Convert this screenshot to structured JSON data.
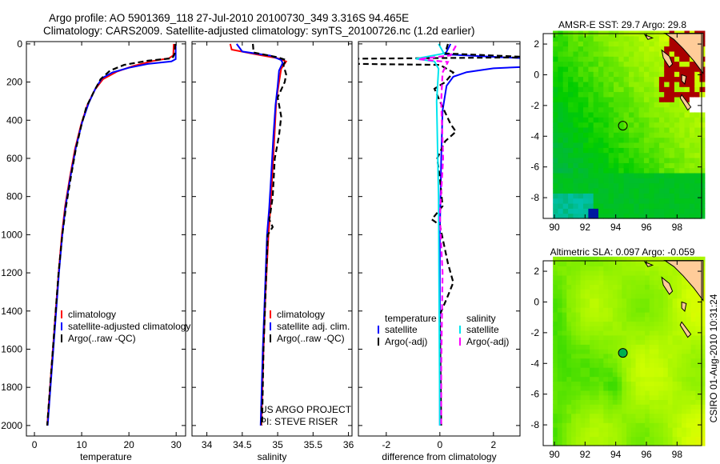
{
  "title": {
    "line1": "Argo profile: AO 5901369_118 27-Jul-2010 20100730_349 3.316S 94.465E",
    "line2": "Climatology: CARS2009. Satellite-adjusted climatology: synTS_20100726.nc (1.2d earlier)"
  },
  "credits": {
    "project": "US ARGO PROJECT",
    "pi": "PI: STEVE RISER",
    "stamp": "CSIRO 01-Aug-2010 10:31:24"
  },
  "colors": {
    "climatology": "#ff0000",
    "satellite": "#0000ff",
    "argo": "#000000",
    "salinity_satellite": "#00e5ee",
    "salinity_argo": "#ff00ff"
  },
  "chart_data": [
    {
      "type": "line",
      "xlabel": "temperature",
      "ylabel": "",
      "xlim": [
        -1.7,
        32
      ],
      "ylim": [
        2055,
        -12
      ],
      "xticks": [
        "0",
        "10",
        "20",
        "30"
      ],
      "xtick_values": [
        0,
        10,
        20,
        30
      ],
      "yticks": [
        "0",
        "200",
        "400",
        "600",
        "800",
        "1000",
        "1200",
        "1400",
        "1600",
        "1800",
        "2000"
      ],
      "ytick_values": [
        0,
        200,
        400,
        600,
        800,
        1000,
        1200,
        1400,
        1600,
        1800,
        2000
      ],
      "legend": [
        "climatology",
        "satellite-adjusted climatology",
        "Argo(..raw -QC)"
      ],
      "legend_position": "lower-right",
      "series": [
        {
          "name": "climatology",
          "color": "#ff0000",
          "dash": false,
          "points": [
            [
              29.5,
              0
            ],
            [
              29.4,
              60
            ],
            [
              28.5,
              75
            ],
            [
              25,
              90
            ],
            [
              21,
              115
            ],
            [
              17.5,
              145
            ],
            [
              14.5,
              185
            ],
            [
              12.8,
              240
            ],
            [
              11.2,
              320
            ],
            [
              9.9,
              420
            ],
            [
              8.6,
              550
            ],
            [
              7.5,
              700
            ],
            [
              6.5,
              850
            ],
            [
              5.8,
              1000
            ],
            [
              5.1,
              1200
            ],
            [
              4.5,
              1400
            ],
            [
              3.9,
              1600
            ],
            [
              3.3,
              1800
            ],
            [
              2.7,
              2000
            ]
          ]
        },
        {
          "name": "satellite-adjusted climatology",
          "color": "#0000ff",
          "dash": false,
          "points": [
            [
              29.9,
              0
            ],
            [
              29.9,
              80
            ],
            [
              29,
              92
            ],
            [
              24,
              105
            ],
            [
              20,
              125
            ],
            [
              16.5,
              150
            ],
            [
              14.3,
              180
            ],
            [
              13,
              230
            ],
            [
              11.5,
              310
            ],
            [
              10.1,
              410
            ],
            [
              8.8,
              540
            ],
            [
              7.6,
              700
            ],
            [
              6.6,
              850
            ],
            [
              5.9,
              1000
            ],
            [
              5.2,
              1200
            ],
            [
              4.6,
              1400
            ],
            [
              4,
              1600
            ],
            [
              3.4,
              1800
            ],
            [
              2.8,
              2000
            ]
          ]
        },
        {
          "name": "Argo(..raw -QC)",
          "color": "#000000",
          "dash": true,
          "points": [
            [
              29.8,
              0
            ],
            [
              29.7,
              50
            ],
            [
              29.2,
              75
            ],
            [
              24,
              88
            ],
            [
              19,
              110
            ],
            [
              16,
              140
            ],
            [
              14,
              185
            ],
            [
              12.6,
              250
            ],
            [
              11,
              330
            ],
            [
              9.9,
              430
            ],
            [
              8.7,
              560
            ],
            [
              7.7,
              700
            ],
            [
              6.7,
              850
            ],
            [
              5.9,
              1000
            ],
            [
              5.1,
              1200
            ],
            [
              4.5,
              1400
            ],
            [
              3.9,
              1600
            ],
            [
              3.3,
              1800
            ],
            [
              2.7,
              2000
            ]
          ]
        }
      ]
    },
    {
      "type": "line",
      "xlabel": "salinity",
      "xlim": [
        33.79,
        36.05
      ],
      "ylim": [
        2055,
        -12
      ],
      "xticks": [
        "34",
        "34.5",
        "35",
        "35.5",
        "36"
      ],
      "xtick_values": [
        34,
        34.5,
        35,
        35.5,
        36
      ],
      "legend": [
        "climatology",
        "satellite adj. clim.",
        "Argo(..raw -QC)"
      ],
      "legend_position": "lower-right",
      "series": [
        {
          "name": "climatology",
          "color": "#ff0000",
          "dash": false,
          "points": [
            [
              34.33,
              0
            ],
            [
              34.35,
              30
            ],
            [
              34.7,
              55
            ],
            [
              35.0,
              75
            ],
            [
              35.12,
              92
            ],
            [
              35.05,
              130
            ],
            [
              35.02,
              200
            ],
            [
              34.98,
              300
            ],
            [
              34.96,
              450
            ],
            [
              34.93,
              650
            ],
            [
              34.9,
              850
            ],
            [
              34.87,
              1000
            ],
            [
              34.83,
              1300
            ],
            [
              34.8,
              1600
            ],
            [
              34.77,
              2000
            ]
          ]
        },
        {
          "name": "satellite adj. clim.",
          "color": "#0000ff",
          "dash": false,
          "points": [
            [
              34.42,
              0
            ],
            [
              34.5,
              40
            ],
            [
              34.9,
              62
            ],
            [
              35.05,
              85
            ],
            [
              35.07,
              100
            ],
            [
              35.02,
              140
            ],
            [
              35.0,
              220
            ],
            [
              34.97,
              320
            ],
            [
              34.94,
              480
            ],
            [
              34.91,
              680
            ],
            [
              34.88,
              860
            ],
            [
              34.85,
              1000
            ],
            [
              34.82,
              1300
            ],
            [
              34.79,
              1600
            ],
            [
              34.76,
              2000
            ]
          ]
        },
        {
          "name": "Argo(..raw -QC)",
          "color": "#000000",
          "dash": true,
          "points": [
            [
              34.65,
              0
            ],
            [
              34.66,
              45
            ],
            [
              35.0,
              70
            ],
            [
              35.12,
              85
            ],
            [
              35.08,
              110
            ],
            [
              35.12,
              160
            ],
            [
              35.1,
              200
            ],
            [
              35.0,
              280
            ],
            [
              35.05,
              380
            ],
            [
              35.02,
              480
            ],
            [
              34.96,
              600
            ],
            [
              34.93,
              800
            ],
            [
              34.9,
              880
            ],
            [
              34.88,
              920
            ],
            [
              34.93,
              960
            ],
            [
              34.86,
              1000
            ],
            [
              34.83,
              1300
            ],
            [
              34.8,
              1600
            ],
            [
              34.78,
              2000
            ]
          ]
        }
      ],
      "annotations": [
        "US ARGO PROJECT",
        "PI: STEVE RISER"
      ]
    },
    {
      "type": "line",
      "xlabel": "difference from climatology",
      "xlim": [
        -3.04,
        2.99
      ],
      "ylim": [
        2055,
        -12
      ],
      "xticks": [
        "-2",
        "0",
        "2"
      ],
      "xtick_values": [
        -2,
        0,
        2
      ],
      "legend_groups": [
        {
          "title": "temperature",
          "items": [
            "satellite",
            "Argo(-adj)"
          ]
        },
        {
          "title": "salinity",
          "items": [
            "satellite",
            "Argo(-adj)"
          ]
        }
      ],
      "legend_position": "lower-right",
      "series": [
        {
          "name": "temperature satellite",
          "color": "#0000ff",
          "dash": false,
          "points": [
            [
              0.4,
              0
            ],
            [
              0.2,
              55
            ],
            [
              3.5,
              78
            ],
            [
              3.5,
              118
            ],
            [
              2,
              128
            ],
            [
              1,
              148
            ],
            [
              0.5,
              172
            ],
            [
              0.25,
              220
            ],
            [
              0.1,
              350
            ],
            [
              0.05,
              600
            ],
            [
              0,
              1000
            ],
            [
              0,
              2000
            ]
          ]
        },
        {
          "name": "temperature Argo(-adj)",
          "color": "#000000",
          "dash": true,
          "points": [
            [
              0.3,
              0
            ],
            [
              0.2,
              50
            ],
            [
              3.5,
              70
            ],
            [
              -3.5,
              78
            ],
            [
              -3.5,
              104
            ],
            [
              0,
              110
            ],
            [
              0.5,
              150
            ],
            [
              0.2,
              200
            ],
            [
              -0.2,
              235
            ],
            [
              0,
              300
            ],
            [
              0.4,
              420
            ],
            [
              0.6,
              460
            ],
            [
              0.2,
              510
            ],
            [
              -0.1,
              600
            ],
            [
              0,
              700
            ],
            [
              0.1,
              850
            ],
            [
              -0.3,
              920
            ],
            [
              0,
              950
            ],
            [
              0.3,
              1150
            ],
            [
              0.5,
              1250
            ],
            [
              0.3,
              1320
            ],
            [
              0,
              1420
            ],
            [
              0.05,
              2000
            ]
          ]
        },
        {
          "name": "salinity satellite",
          "color": "#00e5ee",
          "dash": false,
          "points": [
            [
              -0.05,
              0
            ],
            [
              0.15,
              50
            ],
            [
              -0.9,
              78
            ],
            [
              -0.2,
              92
            ],
            [
              -0.05,
              130
            ],
            [
              -0.12,
              300
            ],
            [
              -0.05,
              800
            ],
            [
              0,
              2000
            ]
          ]
        },
        {
          "name": "salinity Argo(-adj)",
          "color": "#ff00ff",
          "dash": true,
          "points": [
            [
              0.6,
              10
            ],
            [
              0.4,
              60
            ],
            [
              -0.8,
              80
            ],
            [
              0.3,
              95
            ],
            [
              0.1,
              150
            ],
            [
              0.05,
              300
            ],
            [
              0.12,
              600
            ],
            [
              0,
              900
            ],
            [
              0.1,
              1200
            ],
            [
              0.05,
              1700
            ],
            [
              0.05,
              2000
            ]
          ]
        }
      ]
    },
    {
      "type": "heatmap",
      "title": "AMSR-E SST: 29.7 Argo: 29.8",
      "xlim": [
        89.27,
        99.6
      ],
      "ylim": [
        -9.35,
        2.68
      ],
      "xticks": [
        "90",
        "92",
        "94",
        "96",
        "98"
      ],
      "xtick_values": [
        90,
        92,
        94,
        96,
        98
      ],
      "yticks": [
        "2",
        "0",
        "-2",
        "-4",
        "-6",
        "-8"
      ],
      "ytick_values": [
        2,
        0,
        -2,
        -4,
        -6,
        -8
      ],
      "marker": {
        "lon": 94.465,
        "lat": -3.316,
        "filled": false
      }
    },
    {
      "type": "heatmap",
      "title": "Altimetric SLA: 0.097 Argo: -0.059",
      "xlim": [
        89.27,
        99.6
      ],
      "ylim": [
        -9.35,
        2.68
      ],
      "xticks": [
        "90",
        "92",
        "94",
        "96",
        "98"
      ],
      "xtick_values": [
        90,
        92,
        94,
        96,
        98
      ],
      "yticks": [
        "2",
        "0",
        "-2",
        "-4",
        "-6",
        "-8"
      ],
      "ytick_values": [
        2,
        0,
        -2,
        -4,
        -6,
        -8
      ],
      "marker": {
        "lon": 94.465,
        "lat": -3.316,
        "filled": true
      }
    }
  ]
}
